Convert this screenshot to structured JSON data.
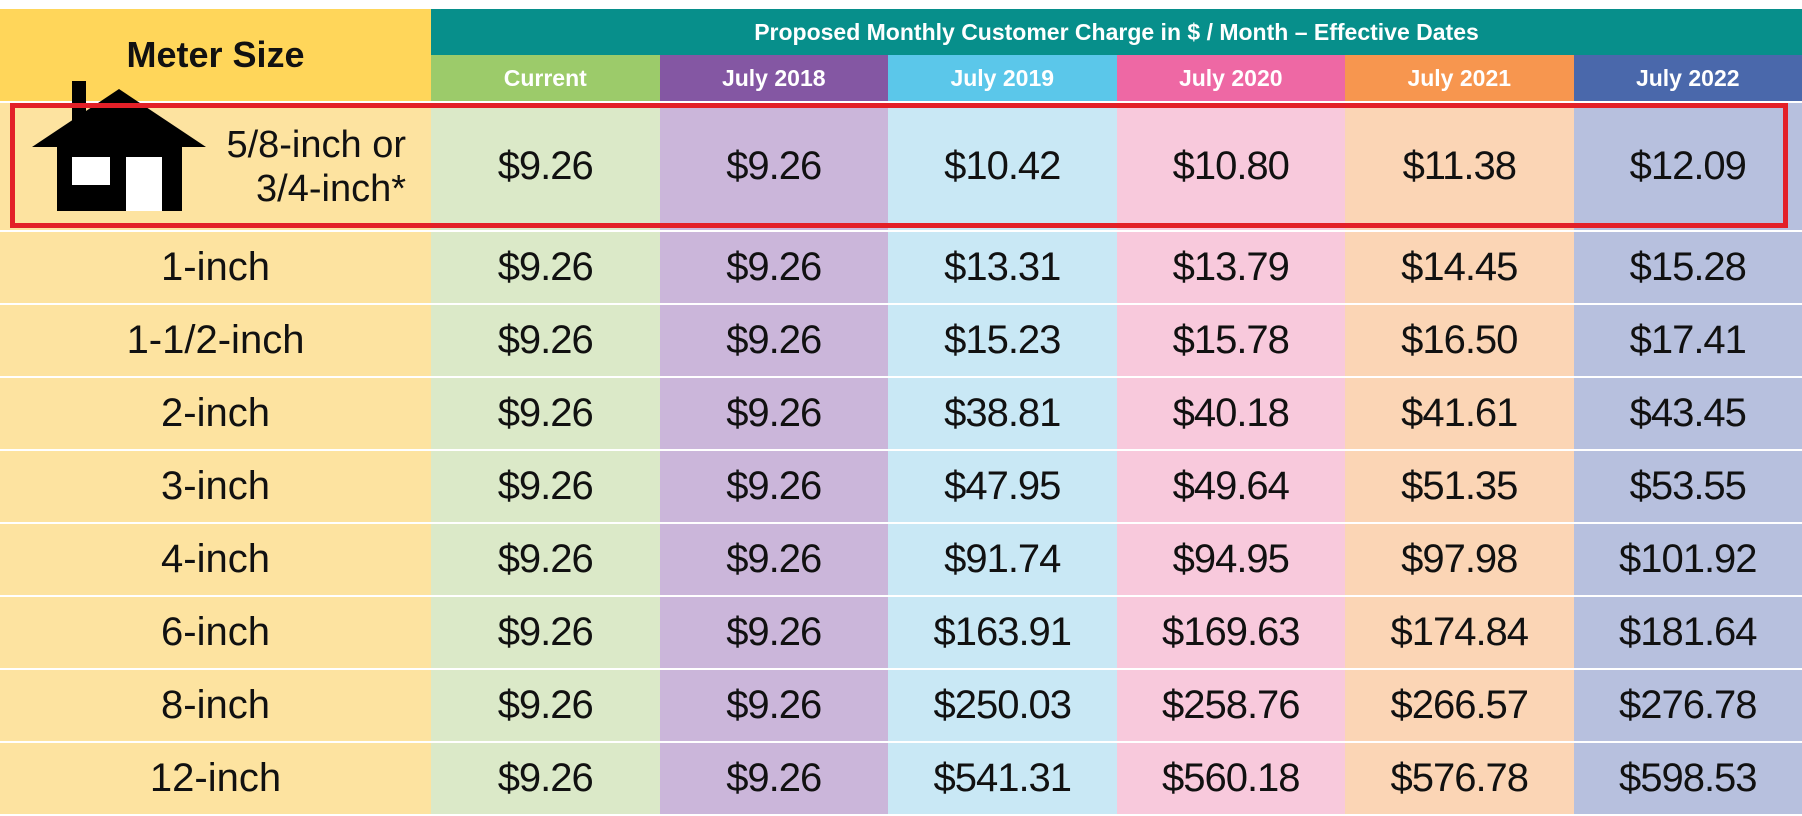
{
  "header": {
    "meter_size": "Meter Size",
    "title": "Proposed Monthly Customer Charge in $ / Month – Effective Dates",
    "columns": [
      {
        "label": "Current",
        "color": "#9ccb6a",
        "cell_color": "#dbe9c8"
      },
      {
        "label": "July 2018",
        "color": "#8457a3",
        "cell_color": "#cbb6da"
      },
      {
        "label": "July 2019",
        "color": "#5bc7ea",
        "cell_color": "#c9e8f5"
      },
      {
        "label": "July 2020",
        "color": "#ee68a4",
        "cell_color": "#f8c9dc"
      },
      {
        "label": "July 2021",
        "color": "#f7964f",
        "cell_color": "#fbd5b5"
      },
      {
        "label": "July 2022",
        "color": "#4a68ab",
        "cell_color": "#b7c0de"
      }
    ]
  },
  "highlighted_row": {
    "size": [
      "5/8-inch or",
      "3/4-inch*"
    ],
    "values": [
      "$9.26",
      "$9.26",
      "$10.42",
      "$10.80",
      "$11.38",
      "$12.09"
    ]
  },
  "rows": [
    {
      "size": "1-inch",
      "values": [
        "$9.26",
        "$9.26",
        "$13.31",
        "$13.79",
        "$14.45",
        "$15.28"
      ]
    },
    {
      "size": "1-1/2-inch",
      "values": [
        "$9.26",
        "$9.26",
        "$15.23",
        "$15.78",
        "$16.50",
        "$17.41"
      ]
    },
    {
      "size": "2-inch",
      "values": [
        "$9.26",
        "$9.26",
        "$38.81",
        "$40.18",
        "$41.61",
        "$43.45"
      ]
    },
    {
      "size": "3-inch",
      "values": [
        "$9.26",
        "$9.26",
        "$47.95",
        "$49.64",
        "$51.35",
        "$53.55"
      ]
    },
    {
      "size": "4-inch",
      "values": [
        "$9.26",
        "$9.26",
        "$91.74",
        "$94.95",
        "$97.98",
        "$101.92"
      ]
    },
    {
      "size": "6-inch",
      "values": [
        "$9.26",
        "$9.26",
        "$163.91",
        "$169.63",
        "$174.84",
        "$181.64"
      ]
    },
    {
      "size": "8-inch",
      "values": [
        "$9.26",
        "$9.26",
        "$250.03",
        "$258.76",
        "$266.57",
        "$276.78"
      ]
    },
    {
      "size": "12-inch",
      "values": [
        "$9.26",
        "$9.26",
        "$541.31",
        "$560.18",
        "$576.78",
        "$598.53"
      ]
    }
  ]
}
